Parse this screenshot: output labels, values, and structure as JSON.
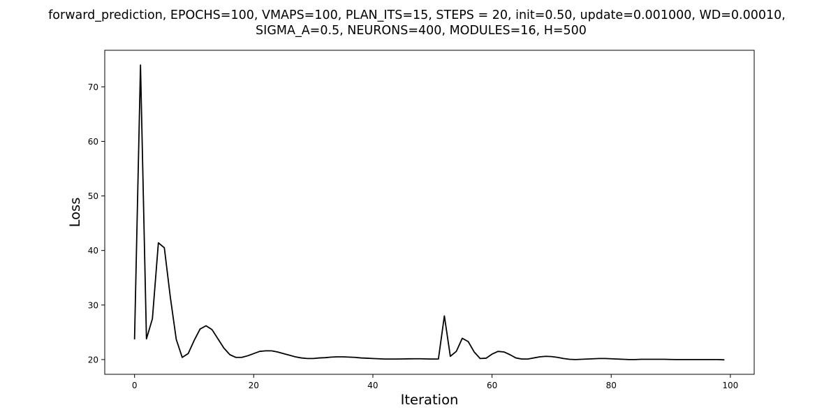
{
  "chart_data": {
    "type": "line",
    "title_lines": [
      "forward_prediction, EPOCHS=100, VMAPS=100, PLAN_ITS=15, STEPS = 20, init=0.50, update=0.001000, WD=0.00010,",
      "SIGMA_A=0.5, NEURONS=400, MODULES=16, H=500"
    ],
    "xlabel": "Iteration",
    "ylabel": "Loss",
    "xlim": [
      -5,
      104
    ],
    "ylim": [
      17.3,
      76.7
    ],
    "xticks": [
      0,
      20,
      40,
      60,
      80,
      100
    ],
    "yticks": [
      20,
      30,
      40,
      50,
      60,
      70
    ],
    "grid": false,
    "legend": "none",
    "line_color": "#000000",
    "x": [
      0,
      1,
      2,
      3,
      4,
      5,
      6,
      7,
      8,
      9,
      10,
      11,
      12,
      13,
      14,
      15,
      16,
      17,
      18,
      19,
      20,
      21,
      22,
      23,
      24,
      25,
      26,
      27,
      28,
      29,
      30,
      31,
      32,
      33,
      34,
      35,
      36,
      37,
      38,
      39,
      40,
      41,
      42,
      43,
      44,
      45,
      46,
      47,
      48,
      49,
      50,
      51,
      52,
      53,
      54,
      55,
      56,
      57,
      58,
      59,
      60,
      61,
      62,
      63,
      64,
      65,
      66,
      67,
      68,
      69,
      70,
      71,
      72,
      73,
      74,
      75,
      76,
      77,
      78,
      79,
      80,
      81,
      82,
      83,
      84,
      85,
      86,
      87,
      88,
      89,
      90,
      91,
      92,
      93,
      94,
      95,
      96,
      97,
      98,
      99
    ],
    "y": [
      23.7,
      74.0,
      23.8,
      27.5,
      41.4,
      40.5,
      31.5,
      23.7,
      20.4,
      21.1,
      23.5,
      25.6,
      26.2,
      25.5,
      23.8,
      22.1,
      20.9,
      20.4,
      20.4,
      20.7,
      21.1,
      21.5,
      21.6,
      21.6,
      21.4,
      21.1,
      20.8,
      20.5,
      20.3,
      20.2,
      20.2,
      20.3,
      20.35,
      20.45,
      20.5,
      20.5,
      20.45,
      20.4,
      20.3,
      20.25,
      20.2,
      20.15,
      20.1,
      20.1,
      20.1,
      20.12,
      20.14,
      20.15,
      20.15,
      20.12,
      20.1,
      20.1,
      28.0,
      20.6,
      21.5,
      23.9,
      23.3,
      21.4,
      20.2,
      20.25,
      21.0,
      21.5,
      21.4,
      20.9,
      20.3,
      20.1,
      20.1,
      20.3,
      20.5,
      20.6,
      20.55,
      20.4,
      20.2,
      20.05,
      20.0,
      20.05,
      20.1,
      20.15,
      20.2,
      20.2,
      20.15,
      20.1,
      20.05,
      20.0,
      20.0,
      20.05,
      20.05,
      20.05,
      20.05,
      20.05,
      20.02,
      20.0,
      20.0,
      20.0,
      20.0,
      20.0,
      20.0,
      20.0,
      20.0,
      19.95
    ]
  }
}
